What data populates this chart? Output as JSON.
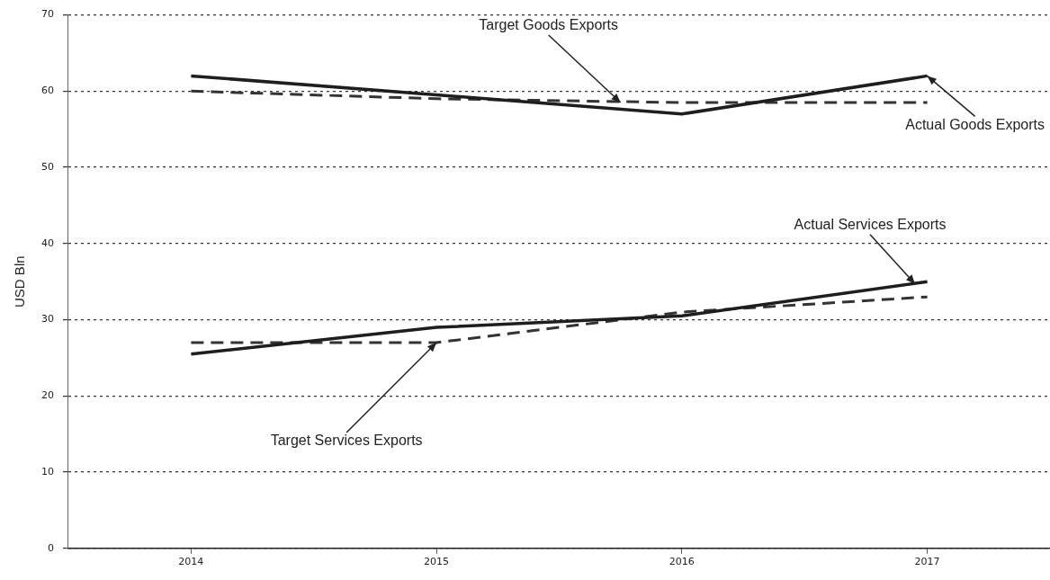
{
  "chart_data": {
    "type": "line",
    "ylabel": "USD Bln",
    "x": [
      2014,
      2015,
      2016,
      2017
    ],
    "xlim": [
      2013.5,
      2017.5
    ],
    "xticks": [
      2014,
      2015,
      2016,
      2017
    ],
    "ylim": [
      0,
      70
    ],
    "yticks": [
      0,
      10,
      20,
      30,
      40,
      50,
      60,
      70
    ],
    "grid": "y",
    "legend": false,
    "marker": "none",
    "series": [
      {
        "color": "#1e1e1e",
        "line_style": "solid",
        "values": [
          62,
          59.5,
          57,
          62
        ]
      },
      {
        "color": "#333333",
        "line_style": "dashed",
        "values": [
          60,
          59,
          58.5,
          58.5
        ]
      },
      {
        "color": "#1e1e1e",
        "line_style": "solid",
        "values": [
          25.5,
          29,
          30.5,
          35
        ]
      },
      {
        "color": "#333333",
        "line_style": "dashed",
        "values": [
          27,
          27,
          31,
          33
        ]
      }
    ],
    "annotations": [
      {
        "text": "Target Goods Exports",
        "x": 2015.75,
        "y": 58.5
      },
      {
        "text": "Actual Goods Exports",
        "x": 2017,
        "y": 62
      },
      {
        "text": "Actual Services Exports",
        "x": 2016.95,
        "y": 34.7
      },
      {
        "text": "Target Services Exports",
        "x": 2015,
        "y": 27
      }
    ]
  }
}
